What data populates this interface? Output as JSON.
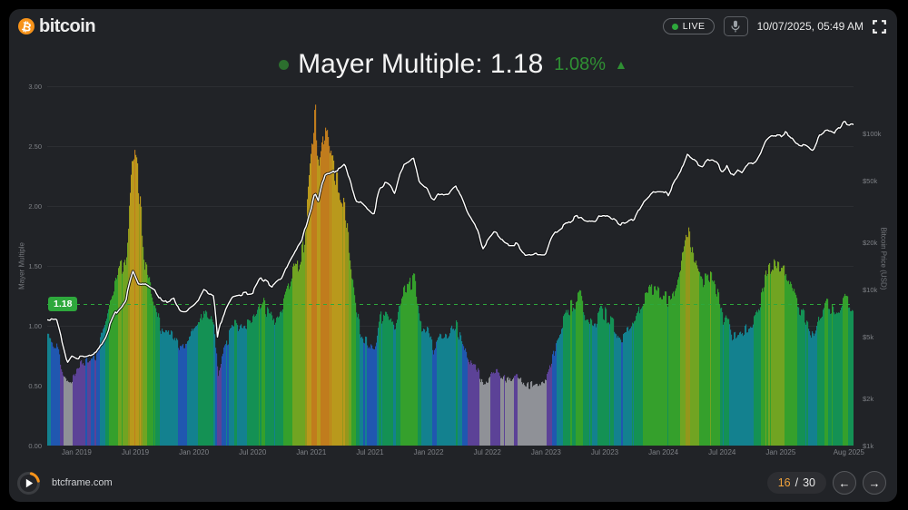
{
  "header": {
    "logo_symbol": "₿",
    "logo_text": "bitcoin",
    "live_label": "LIVE",
    "datetime": "10/07/2025, 05:49 AM"
  },
  "title": {
    "text": "Mayer Multiple: 1.18",
    "change": "1.08%",
    "direction": "▲"
  },
  "icons": {
    "prev": "←",
    "next": "→"
  },
  "footer": {
    "site": "btcframe.com",
    "page_current": "16",
    "page_separator": "/",
    "page_total": "30"
  },
  "colors": {
    "accent_green": "#2ea83c",
    "brand_orange": "#f7931a",
    "price_line": "#ffffff",
    "panel_background": "#212327"
  },
  "chart_data": {
    "type": "composite",
    "title": "Mayer Multiple: 1.18",
    "grid": "horizontal-faint",
    "left_axis": {
      "label": "Mayer Multiple",
      "range": [
        0,
        3
      ],
      "ticks": [
        {
          "label": "0.00",
          "v": 0
        },
        {
          "label": "0.50",
          "v": 0.5
        },
        {
          "label": "1.00",
          "v": 1
        },
        {
          "label": "1.50",
          "v": 1.5
        },
        {
          "label": "2.00",
          "v": 2
        },
        {
          "label": "2.50",
          "v": 2.5
        },
        {
          "label": "3.00",
          "v": 3
        }
      ]
    },
    "right_axis": {
      "label": "Bitcoin Price (USD)",
      "scale": "log",
      "range_usd": [
        1000,
        200000
      ],
      "ticks": [
        {
          "label": "$1k",
          "v": 1000
        },
        {
          "label": "$2k",
          "v": 2000
        },
        {
          "label": "$5k",
          "v": 5000
        },
        {
          "label": "$10k",
          "v": 10000
        },
        {
          "label": "$20k",
          "v": 20000
        },
        {
          "label": "$50k",
          "v": 50000
        },
        {
          "label": "$100k",
          "v": 100000
        }
      ]
    },
    "x_ticks": [
      {
        "label": "Jan 2019",
        "t": 2019.0
      },
      {
        "label": "Jul 2019",
        "t": 2019.5
      },
      {
        "label": "Jan 2020",
        "t": 2020.0
      },
      {
        "label": "Jul 2020",
        "t": 2020.5
      },
      {
        "label": "Jan 2021",
        "t": 2021.0
      },
      {
        "label": "Jul 2021",
        "t": 2021.5
      },
      {
        "label": "Jan 2022",
        "t": 2022.0
      },
      {
        "label": "Jul 2022",
        "t": 2022.5
      },
      {
        "label": "Jan 2023",
        "t": 2023.0
      },
      {
        "label": "Jul 2023",
        "t": 2023.5
      },
      {
        "label": "Jan 2024",
        "t": 2024.0
      },
      {
        "label": "Jul 2024",
        "t": 2024.5
      },
      {
        "label": "Jan 2025",
        "t": 2025.0
      },
      {
        "label": "Aug 2025",
        "t": 2025.58
      }
    ],
    "threshold": {
      "value": 1.18,
      "label": "1.18",
      "color": "#2ea83c",
      "style": "dashed"
    },
    "x": [
      2018.75,
      2018.83,
      2018.88,
      2018.92,
      2018.96,
      2019.0,
      2019.08,
      2019.17,
      2019.25,
      2019.33,
      2019.42,
      2019.48,
      2019.52,
      2019.58,
      2019.67,
      2019.73,
      2019.75,
      2019.83,
      2019.88,
      2019.92,
      2020.0,
      2020.04,
      2020.08,
      2020.17,
      2020.2,
      2020.25,
      2020.33,
      2020.42,
      2020.5,
      2020.56,
      2020.58,
      2020.67,
      2020.75,
      2020.83,
      2020.92,
      2020.96,
      2021.0,
      2021.03,
      2021.06,
      2021.12,
      2021.17,
      2021.21,
      2021.25,
      2021.29,
      2021.33,
      2021.38,
      2021.42,
      2021.46,
      2021.5,
      2021.54,
      2021.56,
      2021.58,
      2021.63,
      2021.67,
      2021.71,
      2021.75,
      2021.79,
      2021.83,
      2021.87,
      2021.92,
      2022.0,
      2022.04,
      2022.08,
      2022.17,
      2022.23,
      2022.25,
      2022.33,
      2022.42,
      2022.46,
      2022.5,
      2022.56,
      2022.58,
      2022.65,
      2022.67,
      2022.75,
      2022.83,
      2022.92,
      2023.0,
      2023.04,
      2023.08,
      2023.17,
      2023.25,
      2023.29,
      2023.33,
      2023.42,
      2023.46,
      2023.5,
      2023.58,
      2023.63,
      2023.67,
      2023.75,
      2023.81,
      2023.83,
      2023.92,
      2024.0,
      2024.04,
      2024.08,
      2024.15,
      2024.17,
      2024.2,
      2024.25,
      2024.29,
      2024.33,
      2024.38,
      2024.42,
      2024.46,
      2024.5,
      2024.54,
      2024.58,
      2024.63,
      2024.67,
      2024.71,
      2024.75,
      2024.79,
      2024.83,
      2024.87,
      2024.92,
      2024.96,
      2025.0,
      2025.04,
      2025.08,
      2025.13,
      2025.17,
      2025.21,
      2025.25,
      2025.27,
      2025.33,
      2025.38,
      2025.42,
      2025.46,
      2025.5,
      2025.54,
      2025.58,
      2025.62
    ],
    "series": [
      {
        "name": "Mayer Multiple",
        "type": "bar",
        "axis": "left",
        "color_bands": [
          {
            "max": 0.58,
            "color": "#8f9197"
          },
          {
            "max": 0.72,
            "color": "#5c4297"
          },
          {
            "max": 0.87,
            "color": "#2057b0"
          },
          {
            "max": 1.02,
            "color": "#13818f"
          },
          {
            "max": 1.17,
            "color": "#149154"
          },
          {
            "max": 1.45,
            "color": "#35a02c"
          },
          {
            "max": 1.72,
            "color": "#71a422"
          },
          {
            "max": 2.02,
            "color": "#94971c"
          },
          {
            "max": 2.45,
            "color": "#b9991c"
          },
          {
            "max": 9.99,
            "color": "#c07c1d"
          }
        ],
        "values": [
          0.9,
          0.82,
          0.6,
          0.52,
          0.55,
          0.66,
          0.7,
          0.76,
          1.05,
          1.35,
          1.6,
          2.48,
          2.2,
          1.5,
          1.15,
          0.92,
          0.95,
          0.92,
          0.8,
          0.82,
          0.97,
          1.02,
          1.12,
          1.0,
          0.58,
          0.78,
          1.0,
          1.0,
          1.02,
          1.18,
          1.2,
          1.04,
          1.15,
          1.4,
          1.6,
          1.95,
          2.45,
          2.83,
          2.35,
          2.7,
          2.35,
          2.2,
          2.1,
          1.95,
          1.55,
          1.1,
          0.95,
          0.88,
          0.82,
          0.78,
          0.95,
          1.05,
          1.12,
          1.05,
          0.95,
          1.15,
          1.3,
          1.32,
          1.42,
          1.02,
          0.92,
          0.8,
          0.88,
          0.92,
          1.02,
          0.95,
          0.72,
          0.62,
          0.5,
          0.55,
          0.62,
          0.62,
          0.54,
          0.55,
          0.58,
          0.5,
          0.52,
          0.55,
          0.7,
          0.85,
          1.1,
          1.22,
          1.25,
          1.08,
          1.02,
          1.12,
          1.1,
          1.0,
          0.9,
          0.92,
          1.0,
          1.18,
          1.22,
          1.32,
          1.25,
          1.18,
          1.25,
          1.55,
          1.7,
          1.85,
          1.6,
          1.5,
          1.35,
          1.42,
          1.38,
          1.25,
          1.05,
          1.12,
          0.9,
          0.95,
          0.92,
          0.98,
          1.02,
          1.08,
          1.25,
          1.45,
          1.52,
          1.48,
          1.45,
          1.48,
          1.35,
          1.18,
          1.1,
          1.05,
          0.95,
          0.9,
          1.1,
          1.18,
          1.15,
          1.08,
          1.12,
          1.22,
          1.18,
          1.18
        ]
      },
      {
        "name": "Bitcoin Price (USD)",
        "type": "line",
        "axis": "right",
        "color": "#ffffff",
        "values": [
          6500,
          6300,
          4500,
          3400,
          3800,
          3650,
          3650,
          3950,
          5050,
          7000,
          8500,
          12900,
          11000,
          10800,
          9800,
          8200,
          8300,
          8800,
          7300,
          7200,
          8000,
          8600,
          9800,
          8900,
          5000,
          6900,
          9100,
          9400,
          9600,
          11500,
          11700,
          10500,
          11800,
          16200,
          20500,
          26500,
          33000,
          41000,
          36500,
          55000,
          55000,
          58000,
          59000,
          63000,
          49000,
          37000,
          36000,
          33500,
          31500,
          29800,
          38000,
          43000,
          47500,
          46000,
          41000,
          54000,
          62000,
          64000,
          68500,
          49000,
          43000,
          36500,
          40000,
          41500,
          47000,
          43000,
          30500,
          24000,
          18500,
          20500,
          23500,
          23000,
          19800,
          19500,
          19500,
          16200,
          16800,
          16800,
          21000,
          23200,
          26000,
          29000,
          29500,
          27500,
          26500,
          30000,
          30000,
          28000,
          26000,
          26200,
          28000,
          34500,
          36500,
          42800,
          42800,
          40000,
          46000,
          57000,
          64000,
          73000,
          68000,
          64000,
          61500,
          67500,
          68000,
          64000,
          57500,
          62000,
          53000,
          59000,
          56500,
          63000,
          63500,
          67000,
          76000,
          91000,
          99000,
          97000,
          96500,
          102000,
          97000,
          86000,
          84000,
          83000,
          79000,
          76500,
          97000,
          104000,
          105000,
          101000,
          108000,
          118000,
          115000,
          115500
        ]
      }
    ]
  }
}
